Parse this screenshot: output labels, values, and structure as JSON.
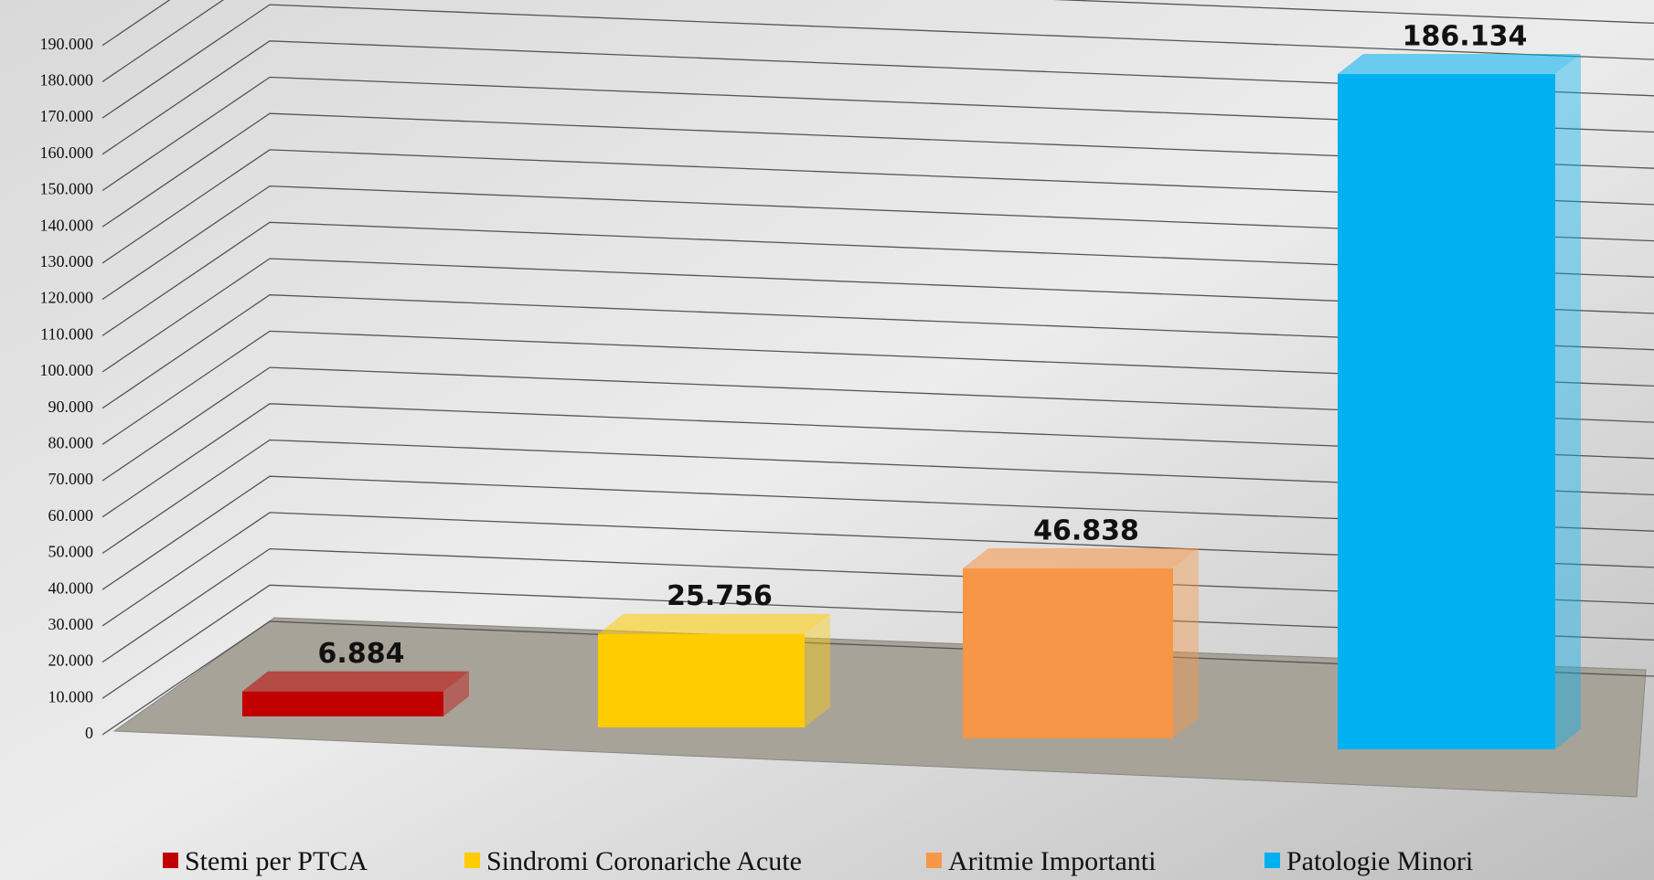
{
  "chart_data": {
    "type": "bar",
    "series": [
      {
        "name": "Stemi per PTCA",
        "color": "#c00000",
        "values": [
          6884
        ],
        "value_labels": [
          "6.884"
        ]
      },
      {
        "name": "Sindromi Coronariche Acute",
        "color": "#ffcc00",
        "values": [
          25756
        ],
        "value_labels": [
          "25.756"
        ]
      },
      {
        "name": "Aritmie Importanti",
        "color": "#f79646",
        "values": [
          46838
        ],
        "value_labels": [
          "46.838"
        ]
      },
      {
        "name": "Patologie Minori",
        "color": "#00b0f0",
        "values": [
          186134
        ],
        "value_labels": [
          "186.134"
        ]
      }
    ],
    "ylim": [
      0,
      200000
    ],
    "yticks": [
      0,
      {
        "value": 10000,
        "label": "10.000"
      },
      {
        "value": 20000,
        "label": "20.000"
      },
      {
        "value": 30000,
        "label": "30.000"
      },
      {
        "value": 40000,
        "label": "40.000"
      },
      {
        "value": 50000,
        "label": "50.000"
      },
      {
        "value": 60000,
        "label": "60.000"
      },
      {
        "value": 70000,
        "label": "70.000"
      },
      {
        "value": 80000,
        "label": "80.000"
      },
      {
        "value": 90000,
        "label": "90.000"
      },
      {
        "value": 100000,
        "label": "100.000"
      },
      {
        "value": 110000,
        "label": "110.000"
      },
      {
        "value": 120000,
        "label": "120.000"
      },
      {
        "value": 130000,
        "label": "130.000"
      },
      {
        "value": 140000,
        "label": "140.000"
      },
      {
        "value": 150000,
        "label": "150.000"
      },
      {
        "value": 160000,
        "label": "160.000"
      },
      {
        "value": 170000,
        "label": "170.000"
      },
      {
        "value": 180000,
        "label": "180.000"
      },
      {
        "value": 190000,
        "label": "190.000"
      }
    ],
    "grid": true,
    "legend": "bottom"
  }
}
